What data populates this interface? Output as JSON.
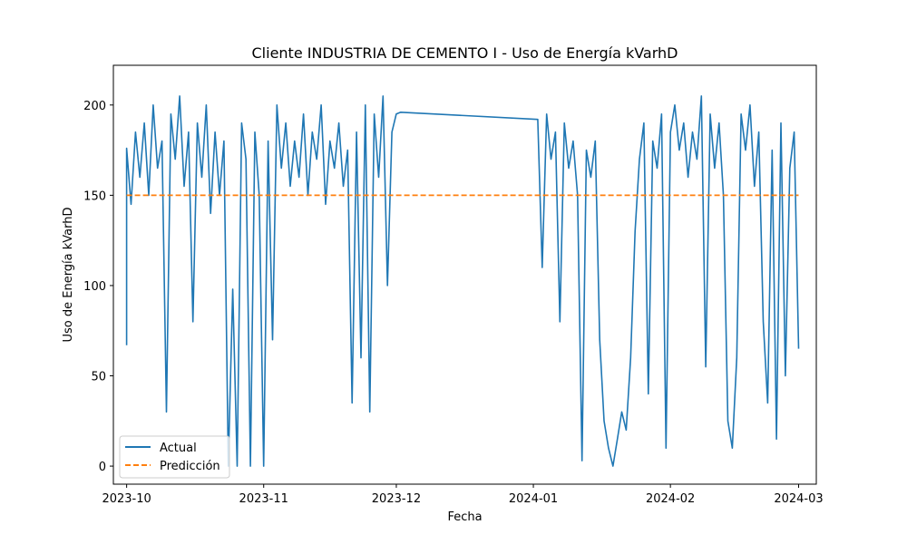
{
  "chart_data": {
    "type": "line",
    "title": "Cliente INDUSTRIA DE CEMENTO I  - Uso de Energía kVarhD",
    "xlabel": "Fecha",
    "ylabel": "Uso de Energía kVarhD",
    "x_ticks": [
      "2023-10",
      "2023-11",
      "2023-12",
      "2024-01",
      "2024-02",
      "2024-03"
    ],
    "x_range": [
      "2023-09-28",
      "2024-03-05"
    ],
    "ylim": [
      -10,
      222
    ],
    "y_ticks": [
      0,
      50,
      100,
      150,
      200
    ],
    "grid": false,
    "legend_position": "lower-left",
    "series": [
      {
        "name": "Actual",
        "color": "#1f77b4",
        "style": "solid",
        "x": [
          "2023-10-01",
          "2023-10-01",
          "2023-10-01",
          "2023-10-02",
          "2023-10-03",
          "2023-10-04",
          "2023-10-05",
          "2023-10-06",
          "2023-10-07",
          "2023-10-08",
          "2023-10-09",
          "2023-10-10",
          "2023-10-11",
          "2023-10-12",
          "2023-10-13",
          "2023-10-14",
          "2023-10-15",
          "2023-10-16",
          "2023-10-17",
          "2023-10-18",
          "2023-10-19",
          "2023-10-20",
          "2023-10-21",
          "2023-10-22",
          "2023-10-23",
          "2023-10-24",
          "2023-10-25",
          "2023-10-26",
          "2023-10-27",
          "2023-10-28",
          "2023-10-29",
          "2023-10-30",
          "2023-10-31",
          "2023-11-01",
          "2023-11-02",
          "2023-11-03",
          "2023-11-04",
          "2023-11-05",
          "2023-11-06",
          "2023-11-07",
          "2023-11-08",
          "2023-11-09",
          "2023-11-10",
          "2023-11-11",
          "2023-11-12",
          "2023-11-13",
          "2023-11-14",
          "2023-11-15",
          "2023-11-16",
          "2023-11-17",
          "2023-11-18",
          "2023-11-19",
          "2023-11-20",
          "2023-11-21",
          "2023-11-22",
          "2023-11-23",
          "2023-11-24",
          "2023-11-25",
          "2023-11-26",
          "2023-11-27",
          "2023-11-28",
          "2023-11-29",
          "2023-11-30",
          "2023-12-01",
          "2023-12-02",
          "2024-01-02",
          "2024-01-03",
          "2024-01-04",
          "2024-01-05",
          "2024-01-06",
          "2024-01-07",
          "2024-01-08",
          "2024-01-09",
          "2024-01-10",
          "2024-01-11",
          "2024-01-12",
          "2024-01-13",
          "2024-01-14",
          "2024-01-15",
          "2024-01-16",
          "2024-01-17",
          "2024-01-18",
          "2024-01-19",
          "2024-01-20",
          "2024-01-21",
          "2024-01-22",
          "2024-01-23",
          "2024-01-24",
          "2024-01-25",
          "2024-01-26",
          "2024-01-27",
          "2024-01-28",
          "2024-01-29",
          "2024-01-30",
          "2024-01-31",
          "2024-02-01",
          "2024-02-02",
          "2024-02-03",
          "2024-02-04",
          "2024-02-05",
          "2024-02-06",
          "2024-02-07",
          "2024-02-08",
          "2024-02-09",
          "2024-02-10",
          "2024-02-11",
          "2024-02-12",
          "2024-02-13",
          "2024-02-14",
          "2024-02-15",
          "2024-02-16",
          "2024-02-17",
          "2024-02-18",
          "2024-02-19",
          "2024-02-20",
          "2024-02-21",
          "2024-02-22",
          "2024-02-23",
          "2024-02-24",
          "2024-02-25",
          "2024-02-26",
          "2024-02-27",
          "2024-02-28",
          "2024-02-29",
          "2024-03-01"
        ],
        "y": [
          67,
          113,
          176,
          145,
          185,
          160,
          190,
          150,
          200,
          165,
          180,
          30,
          195,
          170,
          205,
          155,
          185,
          80,
          190,
          160,
          200,
          140,
          185,
          150,
          180,
          0,
          98,
          0,
          190,
          170,
          0,
          185,
          150,
          0,
          180,
          70,
          200,
          165,
          190,
          155,
          180,
          160,
          195,
          150,
          185,
          170,
          200,
          145,
          180,
          165,
          190,
          155,
          175,
          35,
          185,
          60,
          200,
          30,
          195,
          160,
          205,
          100,
          185,
          195,
          196,
          192,
          110,
          195,
          170,
          185,
          80,
          190,
          165,
          180,
          150,
          3,
          175,
          160,
          180,
          70,
          25,
          10,
          0,
          15,
          30,
          20,
          60,
          130,
          170,
          190,
          40,
          180,
          165,
          195,
          10,
          185,
          200,
          175,
          190,
          160,
          185,
          170,
          205,
          55,
          195,
          165,
          190,
          150,
          25,
          10,
          60,
          195,
          175,
          200,
          155,
          185,
          80,
          35,
          175,
          15,
          190,
          50,
          165,
          185,
          65
        ]
      },
      {
        "name": "Predicción",
        "color": "#ff7f0e",
        "style": "dashed",
        "x": [
          "2023-10-01",
          "2024-03-01"
        ],
        "y": [
          150,
          150
        ]
      }
    ]
  }
}
